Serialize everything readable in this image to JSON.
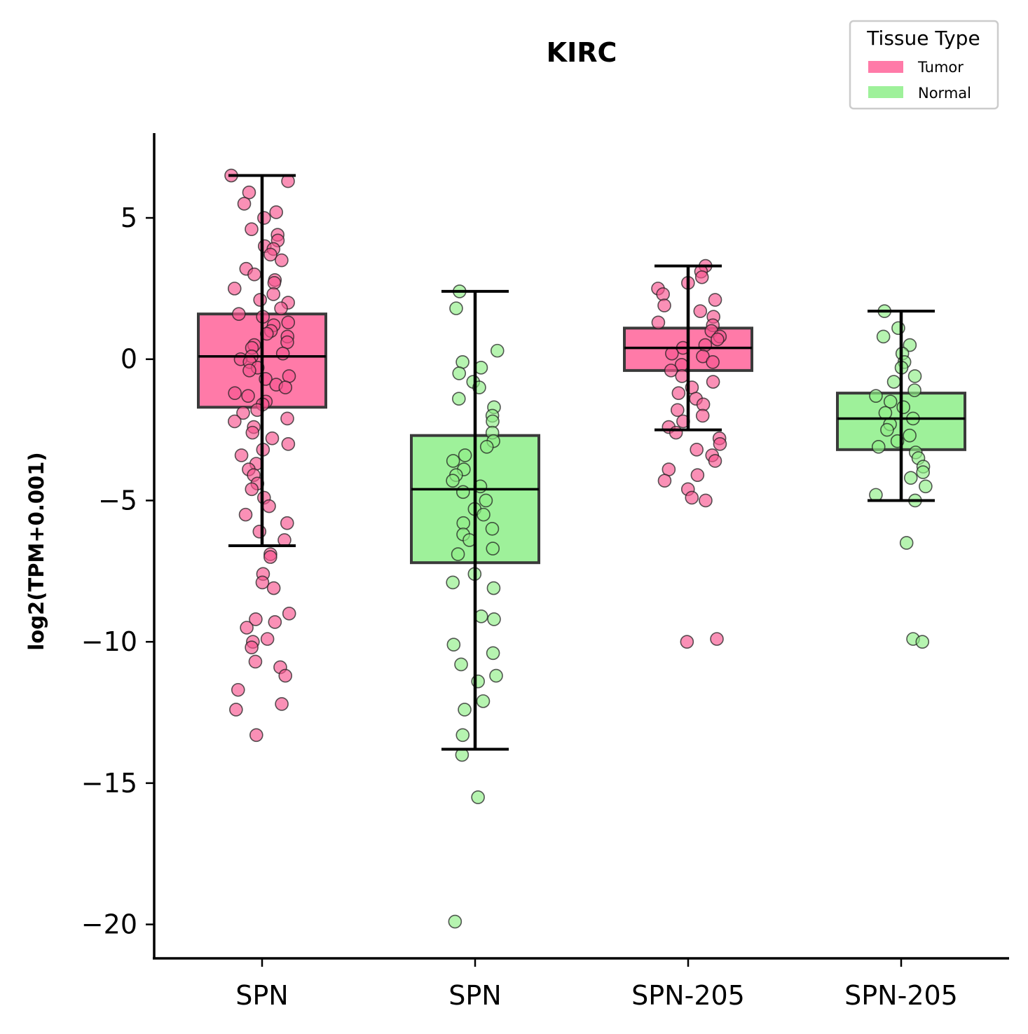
{
  "chart_data": {
    "type": "box",
    "title": "KIRC",
    "xlabel": "",
    "ylabel": "log2(TPM+0.001)",
    "ylim": [
      -21.2,
      8.0
    ],
    "yticks": [
      5,
      0,
      -5,
      -10,
      -15,
      -20
    ],
    "ytick_labels": [
      "5",
      "0",
      "−5",
      "−10",
      "−15",
      "−20"
    ],
    "categories": [
      "SPN",
      "SPN",
      "SPN-205",
      "SPN-205"
    ],
    "grid": false,
    "legend": {
      "title": "Tissue Type",
      "placement": "top-right",
      "entries": [
        {
          "label": "Tumor",
          "color": "#ff7aa8"
        },
        {
          "label": "Normal",
          "color": "#9ef19a"
        }
      ]
    },
    "colors": {
      "Tumor": "#ff7aa8",
      "Normal": "#9ef19a",
      "Tumor_point": "#f7558f",
      "Normal_point": "#8fee86"
    },
    "series": [
      {
        "group": "Tumor",
        "category": "SPN",
        "q1": -1.7,
        "median": 0.1,
        "q3": 1.6,
        "whisker_low": -6.6,
        "whisker_high": 6.5,
        "points": [
          6.5,
          6.3,
          5.9,
          5.5,
          5.2,
          5.0,
          4.6,
          4.4,
          4.2,
          4.0,
          3.9,
          3.7,
          3.5,
          3.2,
          3.0,
          2.8,
          2.7,
          2.5,
          2.3,
          2.1,
          2.0,
          1.8,
          1.6,
          1.5,
          1.3,
          1.2,
          1.0,
          0.9,
          0.8,
          0.6,
          0.5,
          0.4,
          0.2,
          0.1,
          0.0,
          -0.1,
          -0.3,
          -0.4,
          -0.6,
          -0.7,
          -0.9,
          -1.0,
          -1.2,
          -1.3,
          -1.5,
          -1.6,
          -1.8,
          -1.9,
          -2.1,
          -2.2,
          -2.4,
          -2.6,
          -2.8,
          -3.0,
          -3.2,
          -3.4,
          -3.7,
          -3.9,
          -4.1,
          -4.4,
          -4.6,
          -4.9,
          -5.2,
          -5.5,
          -5.8,
          -6.1,
          -6.4,
          -6.9,
          -7.0,
          -7.6,
          -7.9,
          -8.1,
          -9.0,
          -9.2,
          -9.3,
          -9.5,
          -9.9,
          -10.0,
          -10.2,
          -10.7,
          -10.9,
          -11.2,
          -11.7,
          -12.2,
          -12.4,
          -13.3
        ]
      },
      {
        "group": "Normal",
        "category": "SPN",
        "q1": -7.2,
        "median": -4.6,
        "q3": -2.7,
        "whisker_low": -13.8,
        "whisker_high": 2.4,
        "points": [
          2.4,
          1.8,
          0.3,
          -0.1,
          -0.3,
          -0.5,
          -0.8,
          -1.0,
          -1.4,
          -1.7,
          -2.0,
          -2.2,
          -2.6,
          -2.9,
          -3.1,
          -3.4,
          -3.6,
          -3.9,
          -4.1,
          -4.3,
          -4.5,
          -4.7,
          -5.0,
          -5.3,
          -5.5,
          -5.8,
          -6.0,
          -6.2,
          -6.4,
          -6.7,
          -6.9,
          -7.6,
          -7.9,
          -8.1,
          -9.1,
          -9.2,
          -10.1,
          -10.4,
          -10.8,
          -11.2,
          -11.4,
          -12.1,
          -12.4,
          -13.3,
          -14.0,
          -15.5,
          -19.9
        ]
      },
      {
        "group": "Tumor",
        "category": "SPN-205",
        "q1": -0.4,
        "median": 0.4,
        "q3": 1.1,
        "whisker_low": -2.5,
        "whisker_high": 3.3,
        "points": [
          3.3,
          3.1,
          2.9,
          2.7,
          2.5,
          2.3,
          2.1,
          1.9,
          1.7,
          1.5,
          1.3,
          1.2,
          1.0,
          0.8,
          0.7,
          0.5,
          0.4,
          0.2,
          0.1,
          -0.1,
          -0.2,
          -0.4,
          -0.6,
          -0.8,
          -1.0,
          -1.2,
          -1.4,
          -1.6,
          -1.8,
          -2.0,
          -2.2,
          -2.4,
          -2.6,
          -2.8,
          -3.0,
          -3.2,
          -3.4,
          -3.6,
          -3.9,
          -4.1,
          -4.3,
          -4.6,
          -4.9,
          -5.0,
          -9.9,
          -10.0
        ]
      },
      {
        "group": "Normal",
        "category": "SPN-205",
        "q1": -3.2,
        "median": -2.1,
        "q3": -1.2,
        "whisker_low": -5.0,
        "whisker_high": 1.7,
        "points": [
          1.7,
          1.1,
          0.8,
          0.5,
          0.2,
          -0.1,
          -0.3,
          -0.6,
          -0.8,
          -1.1,
          -1.3,
          -1.5,
          -1.7,
          -1.9,
          -2.1,
          -2.3,
          -2.5,
          -2.7,
          -2.9,
          -3.1,
          -3.3,
          -3.5,
          -3.8,
          -4.0,
          -4.2,
          -4.5,
          -4.8,
          -5.0,
          -6.5,
          -9.9,
          -10.0
        ]
      }
    ]
  }
}
